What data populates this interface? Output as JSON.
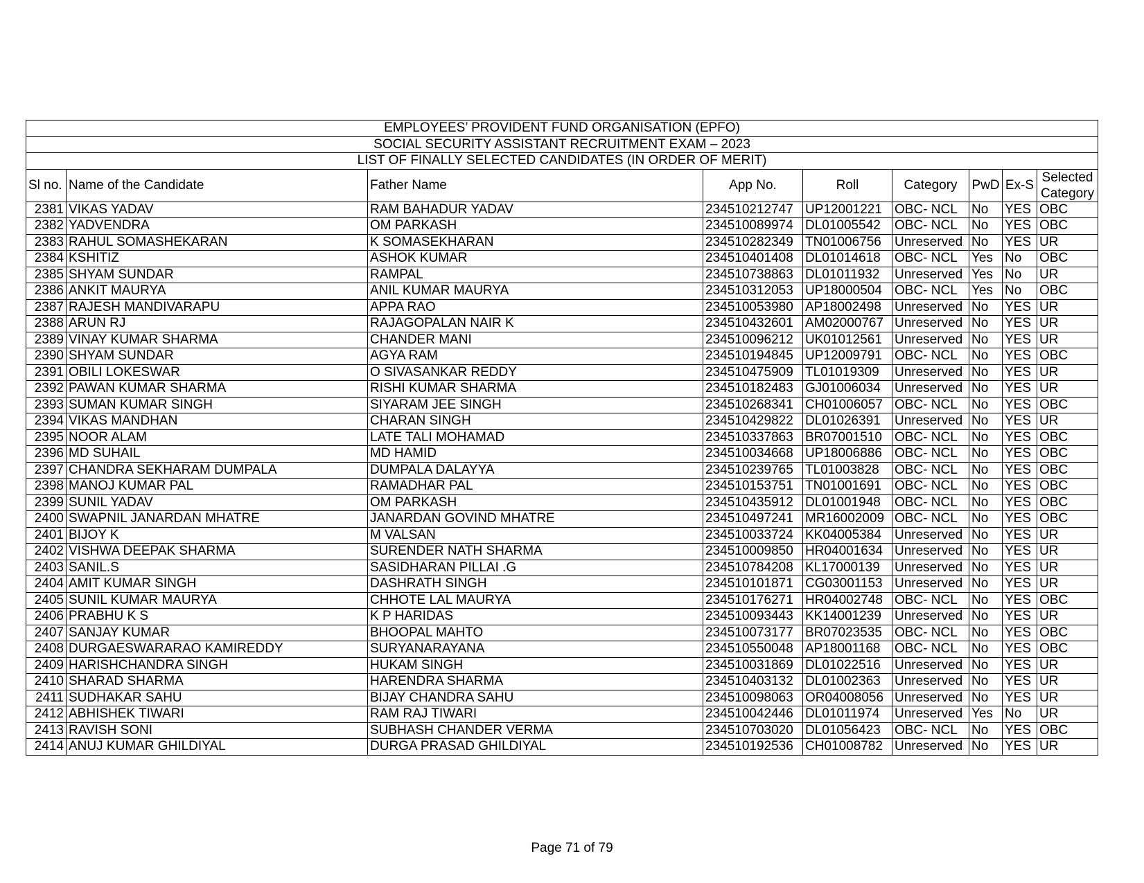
{
  "titles": [
    "EMPLOYEES’ PROVIDENT FUND ORGANISATION (EPFO)",
    "SOCIAL SECURITY ASSISTANT RECRUITMENT EXAM – 2023",
    "LIST OF FINALLY SELECTED CANDIDATES (IN ORDER OF MERIT)"
  ],
  "columns": [
    "Sl no.",
    "Name of the Candidate",
    "Father Name",
    "App No.",
    "Roll",
    "Category",
    "PwD",
    "Ex-S",
    "Selected Category"
  ],
  "rows": [
    [
      "2381",
      "VIKAS YADAV",
      "RAM BAHADUR YADAV",
      "234510212747",
      "UP12001221",
      "OBC- NCL",
      "No",
      "YES",
      "OBC"
    ],
    [
      "2382",
      "YADVENDRA",
      "OM PARKASH",
      "234510089974",
      "DL01005542",
      "OBC- NCL",
      "No",
      "YES",
      "OBC"
    ],
    [
      "2383",
      "RAHUL SOMASHEKARAN",
      "K SOMASEKHARAN",
      "234510282349",
      "TN01006756",
      "Unreserved",
      "No",
      "YES",
      "UR"
    ],
    [
      "2384",
      "KSHITIZ",
      "ASHOK KUMAR",
      "234510401408",
      "DL01014618",
      "OBC- NCL",
      "Yes",
      "No",
      "OBC"
    ],
    [
      "2385",
      "SHYAM SUNDAR",
      "RAMPAL",
      "234510738863",
      "DL01011932",
      "Unreserved",
      "Yes",
      "No",
      "UR"
    ],
    [
      "2386",
      "ANKIT MAURYA",
      "ANIL KUMAR MAURYA",
      "234510312053",
      "UP18000504",
      "OBC- NCL",
      "Yes",
      "No",
      "OBC"
    ],
    [
      "2387",
      "RAJESH MANDIVARAPU",
      "APPA RAO",
      "234510053980",
      "AP18002498",
      "Unreserved",
      "No",
      "YES",
      "UR"
    ],
    [
      "2388",
      "ARUN RJ",
      "RAJAGOPALAN NAIR K",
      "234510432601",
      "AM02000767",
      "Unreserved",
      "No",
      "YES",
      "UR"
    ],
    [
      "2389",
      "VINAY KUMAR SHARMA",
      "CHANDER MANI",
      "234510096212",
      "UK01012561",
      "Unreserved",
      "No",
      "YES",
      "UR"
    ],
    [
      "2390",
      "SHYAM SUNDAR",
      "AGYA RAM",
      "234510194845",
      "UP12009791",
      "OBC- NCL",
      "No",
      "YES",
      "OBC"
    ],
    [
      "2391",
      "OBILI LOKESWAR",
      "O SIVASANKAR REDDY",
      "234510475909",
      "TL01019309",
      "Unreserved",
      "No",
      "YES",
      "UR"
    ],
    [
      "2392",
      "PAWAN KUMAR SHARMA",
      "RISHI KUMAR SHARMA",
      "234510182483",
      "GJ01006034",
      "Unreserved",
      "No",
      "YES",
      "UR"
    ],
    [
      "2393",
      "SUMAN KUMAR SINGH",
      "SIYARAM JEE SINGH",
      "234510268341",
      "CH01006057",
      "OBC- NCL",
      "No",
      "YES",
      "OBC"
    ],
    [
      "2394",
      "VIKAS MANDHAN",
      "CHARAN SINGH",
      "234510429822",
      "DL01026391",
      "Unreserved",
      "No",
      "YES",
      "UR"
    ],
    [
      "2395",
      "NOOR ALAM",
      "LATE TALI MOHAMAD",
      "234510337863",
      "BR07001510",
      "OBC- NCL",
      "No",
      "YES",
      "OBC"
    ],
    [
      "2396",
      "MD SUHAIL",
      "MD HAMID",
      "234510034668",
      "UP18006886",
      "OBC- NCL",
      "No",
      "YES",
      "OBC"
    ],
    [
      "2397",
      "CHANDRA SEKHARAM DUMPALA",
      "DUMPALA DALAYYA",
      "234510239765",
      "TL01003828",
      "OBC- NCL",
      "No",
      "YES",
      "OBC"
    ],
    [
      "2398",
      "MANOJ KUMAR PAL",
      "RAMADHAR PAL",
      "234510153751",
      "TN01001691",
      "OBC- NCL",
      "No",
      "YES",
      "OBC"
    ],
    [
      "2399",
      "SUNIL YADAV",
      "OM PARKASH",
      "234510435912",
      "DL01001948",
      "OBC- NCL",
      "No",
      "YES",
      "OBC"
    ],
    [
      "2400",
      "SWAPNIL JANARDAN MHATRE",
      "JANARDAN GOVIND MHATRE",
      "234510497241",
      "MR16002009",
      "OBC- NCL",
      "No",
      "YES",
      "OBC"
    ],
    [
      "2401",
      "BIJOY K",
      "M VALSAN",
      "234510033724",
      "KK04005384",
      "Unreserved",
      "No",
      "YES",
      "UR"
    ],
    [
      "2402",
      "VISHWA DEEPAK SHARMA",
      "SURENDER NATH SHARMA",
      "234510009850",
      "HR04001634",
      "Unreserved",
      "No",
      "YES",
      "UR"
    ],
    [
      "2403",
      "SANIL.S",
      "SASIDHARAN PILLAI .G",
      "234510784208",
      "KL17000139",
      "Unreserved",
      "No",
      "YES",
      "UR"
    ],
    [
      "2404",
      "AMIT KUMAR SINGH",
      "DASHRATH SINGH",
      "234510101871",
      "CG03001153",
      "Unreserved",
      "No",
      "YES",
      "UR"
    ],
    [
      "2405",
      "SUNIL KUMAR MAURYA",
      "CHHOTE LAL MAURYA",
      "234510176271",
      "HR04002748",
      "OBC- NCL",
      "No",
      "YES",
      "OBC"
    ],
    [
      "2406",
      "PRABHU K S",
      "K P HARIDAS",
      "234510093443",
      "KK14001239",
      "Unreserved",
      "No",
      "YES",
      "UR"
    ],
    [
      "2407",
      "SANJAY KUMAR",
      "BHOOPAL MAHTO",
      "234510073177",
      "BR07023535",
      "OBC- NCL",
      "No",
      "YES",
      "OBC"
    ],
    [
      "2408",
      "DURGAESWARARAO KAMIREDDY",
      "SURYANARAYANA",
      "234510550048",
      "AP18001168",
      "OBC- NCL",
      "No",
      "YES",
      "OBC"
    ],
    [
      "2409",
      "HARISHCHANDRA SINGH",
      "HUKAM SINGH",
      "234510031869",
      "DL01022516",
      "Unreserved",
      "No",
      "YES",
      "UR"
    ],
    [
      "2410",
      "SHARAD SHARMA",
      "HARENDRA SHARMA",
      "234510403132",
      "DL01002363",
      "Unreserved",
      "No",
      "YES",
      "UR"
    ],
    [
      "2411",
      "SUDHAKAR SAHU",
      "BIJAY CHANDRA SAHU",
      "234510098063",
      "OR04008056",
      "Unreserved",
      "No",
      "YES",
      "UR"
    ],
    [
      "2412",
      "ABHISHEK TIWARI",
      "RAM RAJ TIWARI",
      "234510042446",
      "DL01011974",
      "Unreserved",
      "Yes",
      "No",
      "UR"
    ],
    [
      "2413",
      "RAVISH SONI",
      "SUBHASH CHANDER VERMA",
      "234510703020",
      "DL01056423",
      "OBC- NCL",
      "No",
      "YES",
      "OBC"
    ],
    [
      "2414",
      "ANUJ KUMAR GHILDIYAL",
      "DURGA PRASAD GHILDIYAL",
      "234510192536",
      "CH01008782",
      "Unreserved",
      "No",
      "YES",
      "UR"
    ]
  ],
  "footer": "Page 71 of 79"
}
